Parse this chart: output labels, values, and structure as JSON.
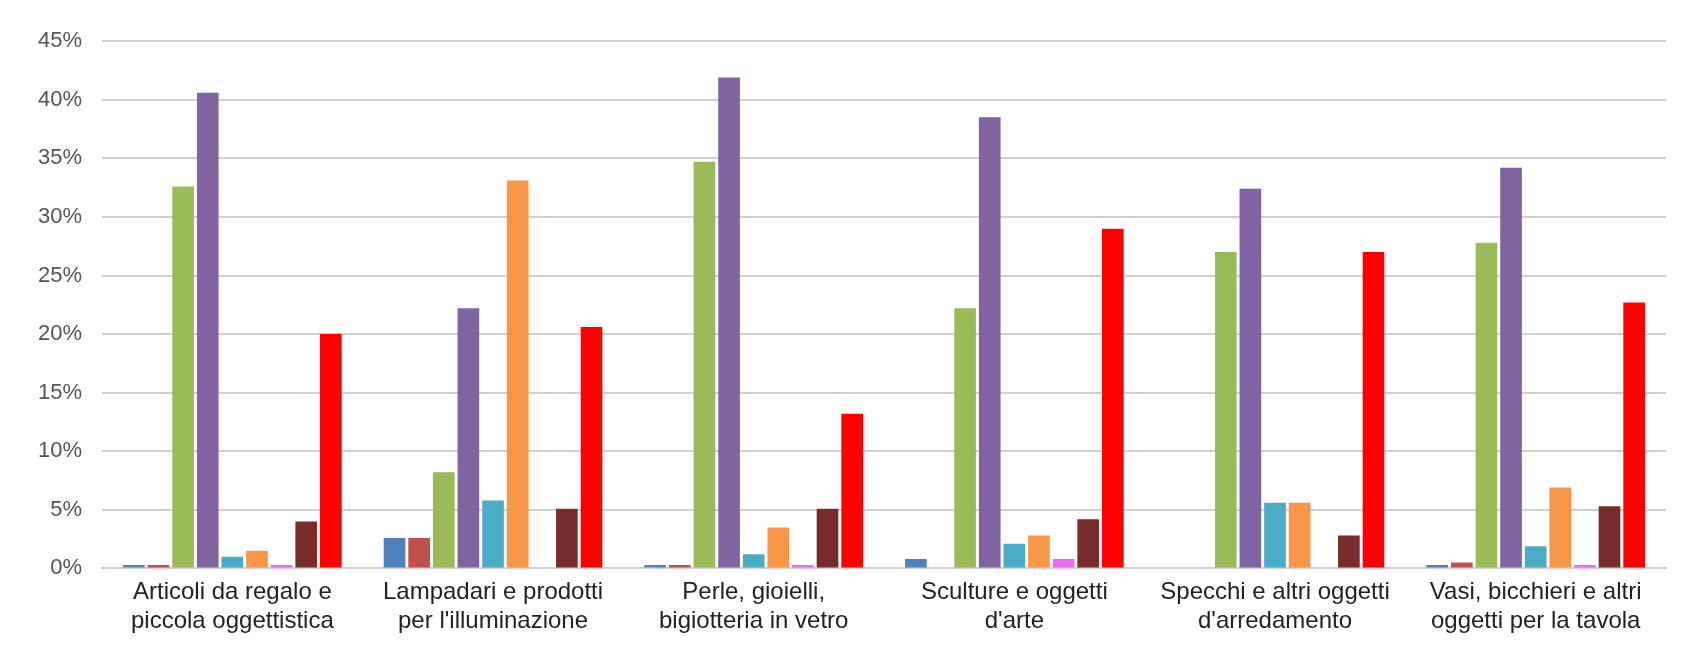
{
  "chart_data": {
    "type": "bar",
    "categories": [
      "Articoli da regalo e piccola oggettistica",
      "Lampadari e prodotti per l'illuminazione",
      "Perle, gioielli, bigiotteria in vetro",
      "Sculture e oggetti d'arte",
      "Specchi e altri oggetti d'arredamento",
      "Vasi, bicchieri e altri oggetti per la tavola"
    ],
    "series": [
      {
        "color": "#4f81bd",
        "values": [
          0.3,
          2.6,
          0.3,
          0.8,
          0,
          0.3
        ]
      },
      {
        "color": "#c0504d",
        "values": [
          0.3,
          2.6,
          0.3,
          0,
          0,
          0.5
        ]
      },
      {
        "color": "#9bbb59",
        "values": [
          32.6,
          8.2,
          34.7,
          22.2,
          27.0,
          27.8
        ]
      },
      {
        "color": "#8064a2",
        "values": [
          40.6,
          22.2,
          41.9,
          38.5,
          32.4,
          34.2
        ]
      },
      {
        "color": "#4bacc6",
        "values": [
          1.0,
          5.8,
          1.2,
          2.1,
          5.6,
          1.9
        ]
      },
      {
        "color": "#f79646",
        "values": [
          1.5,
          33.1,
          3.5,
          2.8,
          5.6,
          6.9
        ]
      },
      {
        "color": "#f066f5",
        "values": [
          0.3,
          0,
          0.3,
          0.8,
          0,
          0.3
        ]
      },
      {
        "color": "#772c2a",
        "values": [
          4.0,
          5.1,
          5.1,
          4.2,
          2.8,
          5.3
        ]
      },
      {
        "color": "#ff0000",
        "values": [
          20.0,
          20.6,
          13.2,
          29.0,
          27.0,
          22.7
        ]
      }
    ],
    "ylim": [
      0,
      45
    ],
    "yticks": [
      {
        "value": 0,
        "label": "0%"
      },
      {
        "value": 5,
        "label": "5%"
      },
      {
        "value": 10,
        "label": "10%"
      },
      {
        "value": 15,
        "label": "15%"
      },
      {
        "value": 20,
        "label": "20%"
      },
      {
        "value": 25,
        "label": "25%"
      },
      {
        "value": 30,
        "label": "30%"
      },
      {
        "value": 35,
        "label": "35%"
      },
      {
        "value": 40,
        "label": "40%"
      },
      {
        "value": 45,
        "label": "45%"
      }
    ],
    "grid": "y",
    "legend": false
  }
}
